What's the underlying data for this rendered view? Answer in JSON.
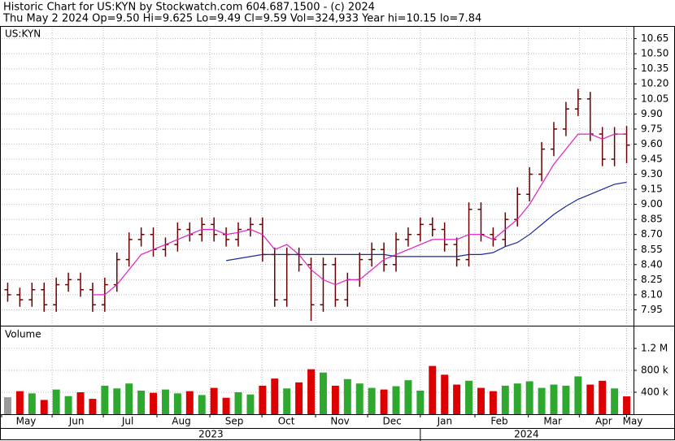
{
  "header": {
    "title": "Historic Chart for US:KYN by Stockwatch.com 604.687.1500 - (c) 2024",
    "quote": "Thu May  2 2024  Op=9.50  Hi=9.625  Lo=9.49  Cl=9.59  Vol=324,933  Year hi=10.15  lo=7.84"
  },
  "chart_data": [
    {
      "type": "ohlc",
      "label": "US:KYN",
      "color": "#6b0000",
      "open": [
        8.15,
        8.1,
        8.05,
        8.15,
        8.0,
        8.2,
        8.25,
        8.15,
        8.0,
        8.2,
        8.45,
        8.65,
        8.7,
        8.55,
        8.6,
        8.75,
        8.7,
        8.8,
        8.7,
        8.65,
        8.75,
        8.8,
        8.5,
        8.05,
        8.5,
        8.4,
        8.0,
        8.4,
        8.05,
        8.25,
        8.45,
        8.55,
        8.4,
        8.65,
        8.7,
        8.8,
        8.75,
        8.6,
        8.45,
        8.95,
        8.7,
        8.65,
        8.85,
        9.1,
        9.3,
        9.55,
        9.75,
        9.95,
        10.05,
        9.7,
        9.45,
        9.7
      ],
      "high": [
        8.22,
        8.17,
        8.22,
        8.22,
        8.27,
        8.32,
        8.32,
        8.22,
        8.27,
        8.52,
        8.72,
        8.77,
        8.77,
        8.67,
        8.82,
        8.82,
        8.87,
        8.87,
        8.77,
        8.82,
        8.87,
        8.87,
        8.57,
        8.57,
        8.57,
        8.47,
        8.47,
        8.47,
        8.32,
        8.52,
        8.62,
        8.62,
        8.72,
        8.77,
        8.87,
        8.87,
        8.82,
        8.67,
        9.02,
        9.02,
        8.77,
        8.92,
        9.17,
        9.37,
        9.62,
        9.82,
        10.02,
        10.15,
        10.12,
        9.77,
        9.77,
        9.78
      ],
      "low": [
        8.03,
        7.98,
        7.98,
        7.93,
        7.93,
        8.13,
        8.08,
        7.93,
        7.93,
        8.13,
        8.38,
        8.58,
        8.48,
        8.48,
        8.53,
        8.63,
        8.63,
        8.63,
        8.58,
        8.58,
        8.68,
        8.43,
        7.98,
        7.98,
        8.33,
        7.84,
        7.93,
        7.98,
        7.98,
        8.18,
        8.38,
        8.33,
        8.33,
        8.58,
        8.63,
        8.68,
        8.53,
        8.38,
        8.38,
        8.63,
        8.58,
        8.58,
        8.78,
        9.03,
        9.23,
        9.48,
        9.68,
        9.88,
        9.63,
        9.38,
        9.38,
        9.41
      ],
      "close": [
        8.1,
        8.05,
        8.15,
        8.0,
        8.2,
        8.25,
        8.15,
        8.0,
        8.2,
        8.45,
        8.65,
        8.7,
        8.55,
        8.6,
        8.75,
        8.7,
        8.8,
        8.7,
        8.65,
        8.75,
        8.8,
        8.5,
        8.05,
        8.5,
        8.4,
        8.0,
        8.4,
        8.05,
        8.25,
        8.45,
        8.55,
        8.4,
        8.65,
        8.7,
        8.8,
        8.75,
        8.6,
        8.45,
        8.95,
        8.7,
        8.65,
        8.85,
        9.1,
        9.3,
        9.55,
        9.75,
        9.95,
        10.05,
        9.7,
        9.45,
        9.7,
        9.59
      ],
      "lines": [
        {
          "color": "#e020c0",
          "values": [
            null,
            null,
            null,
            null,
            null,
            null,
            null,
            8.1,
            8.1,
            8.2,
            8.35,
            8.5,
            8.55,
            8.6,
            8.65,
            8.7,
            8.75,
            8.75,
            8.7,
            8.72,
            8.75,
            8.7,
            8.55,
            8.6,
            8.5,
            8.35,
            8.25,
            8.2,
            8.25,
            8.25,
            8.35,
            8.45,
            8.5,
            8.55,
            8.6,
            8.65,
            8.65,
            8.65,
            8.7,
            8.7,
            8.65,
            8.75,
            8.85,
            9.0,
            9.2,
            9.4,
            9.55,
            9.7,
            9.7,
            9.65,
            9.7,
            9.7
          ]
        },
        {
          "color": "#1a2a9a",
          "values": [
            null,
            null,
            null,
            null,
            null,
            null,
            null,
            null,
            null,
            null,
            null,
            null,
            null,
            null,
            null,
            null,
            null,
            null,
            8.44,
            8.46,
            8.48,
            8.5,
            8.5,
            8.5,
            8.5,
            8.5,
            8.5,
            8.5,
            8.5,
            8.5,
            8.5,
            8.5,
            8.48,
            8.48,
            8.48,
            8.48,
            8.48,
            8.48,
            8.5,
            8.5,
            8.52,
            8.58,
            8.62,
            8.7,
            8.8,
            8.9,
            8.98,
            9.05,
            9.1,
            9.15,
            9.2,
            9.22
          ]
        }
      ],
      "xlim": [
        0,
        52
      ],
      "ylim": [
        7.8,
        10.76
      ],
      "yticks": [
        7.95,
        {
          "value": 8.1,
          "label": "8.10"
        },
        8.25,
        {
          "value": 8.4,
          "label": "8.40"
        },
        8.55,
        {
          "value": 8.7,
          "label": "8.70"
        },
        8.85,
        {
          "value": 9.0,
          "label": "9.00"
        },
        9.15,
        {
          "value": 9.3,
          "label": "9.30"
        },
        9.45,
        {
          "value": 9.6,
          "label": "9.60"
        },
        9.75,
        {
          "value": 9.9,
          "label": "9.90"
        },
        10.05,
        {
          "value": 10.2,
          "label": "10.20"
        },
        10.35,
        {
          "value": 10.5,
          "label": "10.50"
        },
        10.65
      ],
      "grid": true
    },
    {
      "type": "volume",
      "label": "Volume",
      "up_color": "#2fa82f",
      "down_color": "#dd0000",
      "flat_color": "#999999",
      "values": [
        310000,
        420000,
        380000,
        260000,
        450000,
        330000,
        400000,
        280000,
        520000,
        470000,
        560000,
        430000,
        390000,
        450000,
        380000,
        420000,
        350000,
        480000,
        300000,
        400000,
        360000,
        520000,
        650000,
        470000,
        580000,
        820000,
        760000,
        520000,
        640000,
        560000,
        480000,
        450000,
        510000,
        620000,
        430000,
        880000,
        720000,
        540000,
        610000,
        480000,
        420000,
        520000,
        560000,
        600000,
        480000,
        540000,
        520000,
        690000,
        540000,
        610000,
        470000,
        324933
      ],
      "xlim": [
        0,
        52
      ],
      "ylim": [
        0,
        1570000
      ],
      "yticks": [
        {
          "value": 400000,
          "label": "400 k"
        },
        {
          "value": 800000,
          "label": "800 k"
        },
        {
          "value": 1200000,
          "label": "1.2 M"
        }
      ],
      "xticks": [
        {
          "value": 0,
          "label": "May"
        },
        {
          "value": 4.16,
          "label": "Jun"
        },
        {
          "value": 8.38,
          "label": "Jul"
        },
        {
          "value": 12.8,
          "label": "Aug"
        },
        {
          "value": 17.16,
          "label": "Sep"
        },
        {
          "value": 21.45,
          "label": "Oct"
        },
        {
          "value": 25.87,
          "label": "Nov"
        },
        {
          "value": 30.16,
          "label": "Dec"
        },
        {
          "value": 34.5,
          "label": "Jan"
        },
        {
          "value": 39.0,
          "label": "Feb"
        },
        {
          "value": 43.4,
          "label": "Mar"
        },
        {
          "value": 47.6,
          "label": "Apr"
        },
        {
          "value": 51.5,
          "label": "May"
        }
      ],
      "year_ticks": [
        {
          "value": 0,
          "label": "2023"
        },
        {
          "value": 34.5,
          "label": "2024"
        }
      ],
      "grid": true
    }
  ]
}
